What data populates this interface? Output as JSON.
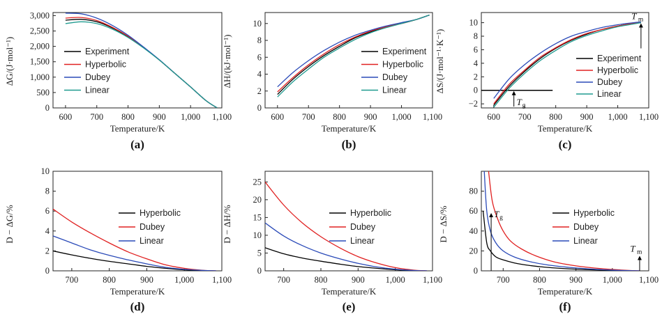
{
  "chart_data": [
    {
      "type": "line",
      "panel_label": "(a)",
      "xlabel": "Temperature/K",
      "ylabel": "ΔG/(J·mol⁻¹)",
      "xlim": [
        560,
        1100
      ],
      "ylim": [
        0,
        3100
      ],
      "x_ticks": [
        600,
        700,
        800,
        900,
        1000,
        1100
      ],
      "x_tick_labels": [
        "600",
        "700",
        "800",
        "900",
        "1,000",
        "1,100"
      ],
      "y_ticks": [
        0,
        500,
        1000,
        1500,
        2000,
        2500,
        3000
      ],
      "y_tick_labels": [
        "0",
        "500",
        "1,000",
        "1,500",
        "2,000",
        "2,500",
        "3,000"
      ],
      "legend": "upper-right",
      "series": [
        {
          "name": "Experiment",
          "color": "#000000",
          "x": [
            600,
            650,
            700,
            750,
            800,
            850,
            900,
            950,
            1000,
            1050,
            1085
          ],
          "y": [
            2850,
            2880,
            2800,
            2600,
            2320,
            1960,
            1560,
            1120,
            680,
            230,
            0
          ]
        },
        {
          "name": "Hyperbolic",
          "color": "#e02020",
          "x": [
            600,
            650,
            700,
            750,
            800,
            850,
            900,
            950,
            1000,
            1050,
            1085
          ],
          "y": [
            2920,
            2940,
            2840,
            2620,
            2330,
            1965,
            1560,
            1120,
            680,
            230,
            0
          ]
        },
        {
          "name": "Dubey",
          "color": "#2a4ab8",
          "x": [
            600,
            650,
            700,
            750,
            800,
            850,
            900,
            950,
            1000,
            1050,
            1085
          ],
          "y": [
            3080,
            3060,
            2920,
            2680,
            2360,
            1975,
            1565,
            1120,
            680,
            230,
            0
          ]
        },
        {
          "name": "Linear",
          "color": "#1f9a8f",
          "x": [
            600,
            650,
            700,
            750,
            800,
            850,
            900,
            950,
            1000,
            1050,
            1085
          ],
          "y": [
            2740,
            2800,
            2740,
            2560,
            2290,
            1945,
            1555,
            1120,
            680,
            230,
            0
          ]
        }
      ]
    },
    {
      "type": "line",
      "panel_label": "(b)",
      "xlabel": "Temperature/K",
      "ylabel": "ΔH/(kJ·mol⁻¹)",
      "xlim": [
        560,
        1100
      ],
      "ylim": [
        0,
        11.3
      ],
      "x_ticks": [
        600,
        700,
        800,
        900,
        1000,
        1100
      ],
      "x_tick_labels": [
        "600",
        "700",
        "800",
        "900",
        "1,000",
        "1,100"
      ],
      "y_ticks": [
        0,
        2,
        4,
        6,
        8,
        10
      ],
      "y_tick_labels": [
        "0",
        "2",
        "4",
        "6",
        "8",
        "10"
      ],
      "legend": "lower-right",
      "series": [
        {
          "name": "Experiment",
          "color": "#000000",
          "x": [
            600,
            650,
            700,
            750,
            800,
            850,
            900,
            950,
            1000,
            1050,
            1090
          ],
          "y": [
            1.6,
            3.4,
            4.9,
            6.2,
            7.3,
            8.3,
            9.0,
            9.6,
            10.0,
            10.5,
            11.0
          ]
        },
        {
          "name": "Hyperbolic",
          "color": "#e02020",
          "x": [
            600,
            650,
            700,
            750,
            800,
            850,
            900,
            950,
            1000,
            1050,
            1090
          ],
          "y": [
            1.9,
            3.6,
            5.1,
            6.4,
            7.5,
            8.4,
            9.1,
            9.6,
            10.0,
            10.5,
            11.0
          ]
        },
        {
          "name": "Dubey",
          "color": "#2a4ab8",
          "x": [
            600,
            650,
            700,
            750,
            800,
            850,
            900,
            950,
            1000,
            1050,
            1090
          ],
          "y": [
            2.5,
            4.2,
            5.6,
            6.8,
            7.8,
            8.6,
            9.2,
            9.7,
            10.1,
            10.5,
            11.0
          ]
        },
        {
          "name": "Linear",
          "color": "#1f9a8f",
          "x": [
            600,
            650,
            700,
            750,
            800,
            850,
            900,
            950,
            1000,
            1050,
            1090
          ],
          "y": [
            1.3,
            3.1,
            4.6,
            6.0,
            7.1,
            8.1,
            8.9,
            9.5,
            10.0,
            10.5,
            11.0
          ]
        }
      ]
    },
    {
      "type": "line",
      "panel_label": "(c)",
      "xlabel": "Temperature/K",
      "ylabel": "ΔS/(J·mol⁻¹·K⁻¹)",
      "xlim": [
        560,
        1100
      ],
      "ylim": [
        -2.6,
        11.5
      ],
      "x_ticks": [
        600,
        700,
        800,
        900,
        1000,
        1100
      ],
      "x_tick_labels": [
        "600",
        "700",
        "800",
        "900",
        "1,000",
        "1,100"
      ],
      "y_ticks": [
        -2,
        0,
        2,
        4,
        6,
        8,
        10
      ],
      "y_tick_labels": [
        "−2",
        "0",
        "2",
        "4",
        "6",
        "8",
        "10"
      ],
      "legend": "lower-right",
      "reference_line": {
        "y": 0,
        "x_from": 560,
        "x_to": 790
      },
      "annotations": [
        {
          "text": "T",
          "sub": "g",
          "x": 665,
          "y_from": -2.4,
          "y_to": -0.1
        },
        {
          "text": "T",
          "sub": "m",
          "x": 1075,
          "y_from": 6.2,
          "y_to": 9.9
        }
      ],
      "series": [
        {
          "name": "Experiment",
          "color": "#000000",
          "x": [
            600,
            650,
            700,
            750,
            800,
            850,
            900,
            950,
            1000,
            1050,
            1075
          ],
          "y": [
            -2.2,
            0.6,
            2.8,
            4.7,
            6.2,
            7.4,
            8.3,
            9.0,
            9.5,
            9.9,
            10.0
          ]
        },
        {
          "name": "Hyperbolic",
          "color": "#e02020",
          "x": [
            600,
            650,
            700,
            750,
            800,
            850,
            900,
            950,
            1000,
            1050,
            1075
          ],
          "y": [
            -2.0,
            0.9,
            3.0,
            4.9,
            6.3,
            7.5,
            8.4,
            9.0,
            9.5,
            9.9,
            10.0
          ]
        },
        {
          "name": "Dubey",
          "color": "#2a4ab8",
          "x": [
            600,
            650,
            700,
            750,
            800,
            850,
            900,
            950,
            1000,
            1050,
            1075
          ],
          "y": [
            -1.2,
            1.7,
            3.8,
            5.5,
            6.9,
            8.0,
            8.7,
            9.3,
            9.7,
            10.0,
            10.1
          ]
        },
        {
          "name": "Linear",
          "color": "#1f9a8f",
          "x": [
            600,
            650,
            700,
            750,
            800,
            850,
            900,
            950,
            1000,
            1050,
            1075
          ],
          "y": [
            -2.5,
            0.3,
            2.5,
            4.4,
            5.9,
            7.2,
            8.1,
            8.8,
            9.4,
            9.8,
            10.0
          ]
        }
      ]
    },
    {
      "type": "line",
      "panel_label": "(d)",
      "xlabel": "Temperature/K",
      "ylabel": "D − ΔG/%",
      "xlim": [
        650,
        1100
      ],
      "ylim": [
        0,
        10
      ],
      "x_ticks": [
        700,
        800,
        900,
        1000,
        1100
      ],
      "x_tick_labels": [
        "700",
        "800",
        "900",
        "1,000",
        "1,100"
      ],
      "y_ticks": [
        0,
        2,
        4,
        6,
        8,
        10
      ],
      "y_tick_labels": [
        "0",
        "2",
        "4",
        "6",
        "8",
        "10"
      ],
      "legend": "right",
      "series": [
        {
          "name": "Hyperbolic",
          "color": "#000000",
          "x": [
            650,
            700,
            750,
            800,
            850,
            900,
            950,
            1000,
            1050,
            1085
          ],
          "y": [
            2.0,
            1.6,
            1.25,
            0.95,
            0.7,
            0.45,
            0.25,
            0.1,
            0.03,
            0.0
          ]
        },
        {
          "name": "Dubey",
          "color": "#e02020",
          "x": [
            650,
            700,
            750,
            800,
            850,
            900,
            950,
            1000,
            1050,
            1085
          ],
          "y": [
            6.2,
            4.9,
            3.8,
            2.8,
            1.9,
            1.2,
            0.6,
            0.25,
            0.05,
            0.0
          ]
        },
        {
          "name": "Linear",
          "color": "#2a4ab8",
          "x": [
            650,
            700,
            750,
            800,
            850,
            900,
            950,
            1000,
            1050,
            1085
          ],
          "y": [
            3.5,
            2.8,
            2.1,
            1.55,
            1.1,
            0.7,
            0.35,
            0.15,
            0.04,
            0.0
          ]
        }
      ]
    },
    {
      "type": "line",
      "panel_label": "(e)",
      "xlabel": "Temperature/K",
      "ylabel": "D − ΔH/%",
      "xlim": [
        650,
        1100
      ],
      "ylim": [
        0,
        28
      ],
      "x_ticks": [
        700,
        800,
        900,
        1000,
        1100
      ],
      "x_tick_labels": [
        "700",
        "800",
        "900",
        "1,000",
        "1,100"
      ],
      "y_ticks": [
        0,
        5,
        10,
        15,
        20,
        25
      ],
      "y_tick_labels": [
        "0",
        "5",
        "10",
        "15",
        "20",
        "25"
      ],
      "legend": "right",
      "series": [
        {
          "name": "Hyperbolic",
          "color": "#000000",
          "x": [
            650,
            700,
            750,
            800,
            850,
            900,
            950,
            1000,
            1050,
            1085
          ],
          "y": [
            6.5,
            4.8,
            3.6,
            2.7,
            1.9,
            1.2,
            0.7,
            0.3,
            0.05,
            0.0
          ]
        },
        {
          "name": "Dubey",
          "color": "#e02020",
          "x": [
            650,
            700,
            750,
            800,
            850,
            900,
            950,
            1000,
            1050,
            1085
          ],
          "y": [
            25,
            18.5,
            13.5,
            9.6,
            6.5,
            4.0,
            2.2,
            0.9,
            0.2,
            0.0
          ]
        },
        {
          "name": "Linear",
          "color": "#2a4ab8",
          "x": [
            650,
            700,
            750,
            800,
            850,
            900,
            950,
            1000,
            1050,
            1085
          ],
          "y": [
            13.5,
            9.8,
            7.1,
            5.0,
            3.4,
            2.1,
            1.1,
            0.45,
            0.1,
            0.0
          ]
        }
      ]
    },
    {
      "type": "line",
      "panel_label": "(f)",
      "xlabel": "Temperature/K",
      "ylabel": "D − ΔS/%",
      "xlim": [
        640,
        1100
      ],
      "ylim": [
        0,
        100
      ],
      "x_ticks": [
        700,
        800,
        900,
        1000,
        1100
      ],
      "x_tick_labels": [
        "700",
        "800",
        "900",
        "1,000",
        "1,100"
      ],
      "y_ticks": [
        0,
        20,
        40,
        60,
        80
      ],
      "y_tick_labels": [
        "0",
        "20",
        "40",
        "60",
        "80"
      ],
      "legend": "right",
      "annotations": [
        {
          "text": "T",
          "sub": "g",
          "x": 667,
          "y_from": 0,
          "y_to": 58
        },
        {
          "text": "T",
          "sub": "m",
          "x": 1075,
          "y_from": 0,
          "y_to": 15
        }
      ],
      "series": [
        {
          "name": "Hyperbolic",
          "color": "#000000",
          "x": [
            645,
            655,
            665,
            680,
            700,
            730,
            770,
            820,
            880,
            950,
            1020,
            1075
          ],
          "y": [
            60,
            28,
            20,
            14,
            11,
            8,
            5.5,
            3.5,
            2,
            1,
            0.3,
            0
          ]
        },
        {
          "name": "Dubey",
          "color": "#e02020",
          "x": [
            660,
            670,
            685,
            700,
            720,
            750,
            790,
            840,
            900,
            970,
            1040,
            1075
          ],
          "y": [
            100,
            70,
            52,
            40,
            30,
            22,
            15,
            9,
            5,
            2.2,
            0.5,
            0
          ]
        },
        {
          "name": "Linear",
          "color": "#2a4ab8",
          "x": [
            648,
            655,
            665,
            680,
            700,
            730,
            770,
            820,
            880,
            950,
            1020,
            1075
          ],
          "y": [
            100,
            60,
            40,
            28,
            20,
            14,
            9.5,
            6,
            3.5,
            1.6,
            0.4,
            0
          ]
        }
      ]
    }
  ]
}
